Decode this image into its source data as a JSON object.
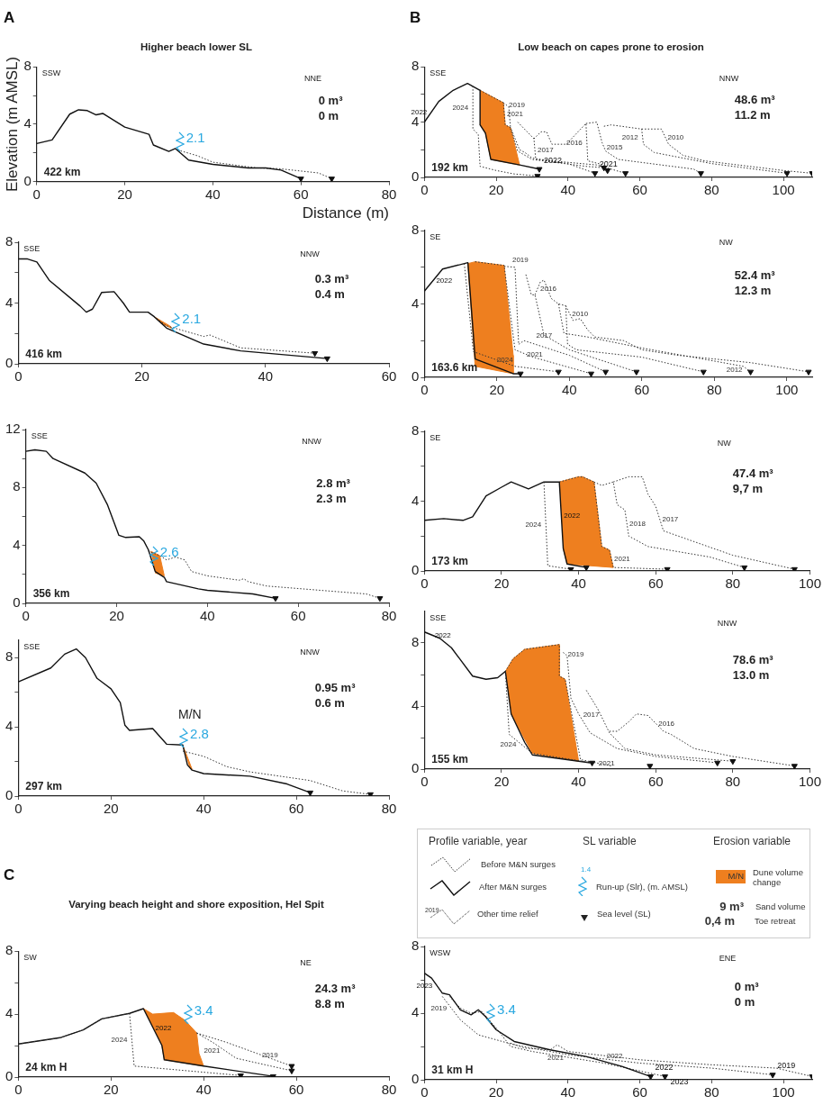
{
  "chart_data": [
    {
      "type": "line",
      "title": "A",
      "subtitle": "Higher beach lower SL",
      "xlabel": "Distance (m)",
      "ylabel": "Elevation (m AMSL)",
      "xlim": [
        0,
        80
      ],
      "ylim": [
        0,
        8
      ],
      "xticks": [
        0,
        20,
        40,
        60,
        80
      ],
      "yticks": [
        0,
        {
          "value": 2,
          "label": null
        },
        4,
        {
          "value": 6,
          "label": null
        },
        8
      ],
      "annotations": [
        "SSW",
        "NNE",
        "0 m³",
        "0 m",
        "422 km",
        {
          "text": "2.1",
          "x": 32.5,
          "y": 2.1
        }
      ],
      "series": [
        {
          "color": "#111111",
          "line_style": "solid",
          "x": [
            0,
            3.5,
            7.5,
            9.5,
            11.5,
            13.5,
            15,
            20,
            25.5,
            26.5,
            30,
            31.5,
            34.5,
            40,
            48,
            52,
            55.5,
            60
          ],
          "values": [
            2.65,
            2.9,
            4.7,
            5.0,
            4.95,
            4.65,
            4.75,
            3.8,
            3.3,
            2.55,
            2.1,
            2.3,
            1.5,
            1.2,
            0.95,
            0.95,
            0.8,
            0.2
          ]
        },
        {
          "color": "#333333",
          "line_style": "dotted",
          "x": [
            32,
            36.5,
            40,
            50,
            55,
            64,
            67
          ],
          "values": [
            2.2,
            1.8,
            1.35,
            0.95,
            0.9,
            0.6,
            0.2
          ]
        },
        {
          "type": "scatter",
          "color": "#111111",
          "marker": "triangle",
          "x": [
            60,
            67
          ],
          "values": [
            0.2,
            0.2
          ]
        }
      ]
    },
    {
      "type": "line",
      "xlim": [
        0,
        60
      ],
      "ylim": [
        0,
        8
      ],
      "xticks": [
        0,
        20,
        40,
        60
      ],
      "yticks": [
        0,
        {
          "value": 2,
          "label": null
        },
        4,
        {
          "value": 6,
          "label": null
        },
        8
      ],
      "annotations": [
        "SSE",
        "NNW",
        "0.3 m³",
        "0.4 m",
        "416 km",
        {
          "text": "2.1",
          "x": 25.5,
          "y": 2.1
        }
      ],
      "series": [
        {
          "color": "#111111",
          "line_style": "solid",
          "x": [
            0,
            1.5,
            3,
            5,
            10,
            11,
            12,
            13.5,
            15.5,
            17,
            18,
            21,
            22,
            24,
            30,
            36,
            50
          ],
          "values": [
            6.9,
            6.9,
            6.7,
            5.5,
            3.8,
            3.4,
            3.6,
            4.7,
            4.75,
            4.0,
            3.4,
            3.4,
            3.1,
            2.35,
            1.3,
            0.85,
            0.35
          ]
        },
        {
          "color": "#333333",
          "line_style": "dotted",
          "x": [
            22,
            24,
            30,
            31,
            36,
            48
          ],
          "values": [
            3.1,
            2.5,
            1.8,
            1.9,
            1.05,
            0.7
          ]
        },
        {
          "type": "area",
          "color": "#ee7f1f",
          "x": [
            22,
            24.5,
            25,
            23
          ],
          "values": [
            3.1,
            2.5,
            2.3,
            2.7
          ]
        },
        {
          "type": "scatter",
          "color": "#111111",
          "marker": "triangle",
          "x": [
            48,
            50
          ],
          "values": [
            0.7,
            0.35
          ]
        }
      ]
    },
    {
      "type": "line",
      "xlim": [
        0,
        80
      ],
      "ylim": [
        0,
        12
      ],
      "xticks": [
        0,
        20,
        40,
        60,
        80
      ],
      "yticks": [
        0,
        {
          "value": 2,
          "label": null
        },
        4,
        {
          "value": 6,
          "label": null
        },
        8,
        {
          "value": 10,
          "label": null
        },
        12
      ],
      "annotations": [
        "SSE",
        "NNW",
        "2.8 m³",
        "2.3 m",
        "356 km",
        {
          "text": "2.6",
          "x": 28.2,
          "y": 2.6
        }
      ],
      "series": [
        {
          "color": "#111111",
          "line_style": "solid",
          "x": [
            0,
            2,
            4.5,
            6,
            13,
            15.5,
            18,
            20.5,
            22,
            25,
            26,
            27,
            28.5,
            30.5,
            31,
            38,
            40,
            50,
            55
          ],
          "values": [
            10.5,
            10.6,
            10.5,
            10.0,
            9.0,
            8.3,
            6.8,
            4.7,
            4.55,
            4.6,
            4.3,
            3.7,
            2.2,
            1.8,
            1.5,
            1.0,
            0.9,
            0.65,
            0.35
          ]
        },
        {
          "color": "#333333",
          "line_style": "dotted",
          "x": [
            27,
            29.5,
            31,
            33,
            35,
            36.5,
            40,
            47,
            48,
            49,
            53,
            75,
            78
          ],
          "values": [
            3.6,
            3.3,
            3.0,
            3.2,
            3.0,
            2.2,
            1.9,
            1.6,
            1.7,
            1.5,
            1.2,
            0.65,
            0.35
          ]
        },
        {
          "type": "area",
          "color": "#ee7f1f",
          "x": [
            27.5,
            29.5,
            30.5,
            28.5
          ],
          "values": [
            3.6,
            3.3,
            1.9,
            2.1
          ]
        },
        {
          "type": "scatter",
          "color": "#111111",
          "marker": "triangle",
          "x": [
            55,
            78
          ],
          "values": [
            0.35,
            0.35
          ]
        }
      ]
    },
    {
      "type": "line",
      "xlim": [
        0,
        80
      ],
      "ylim": [
        0,
        9
      ],
      "xticks": [
        0,
        20,
        40,
        60,
        80
      ],
      "yticks": [
        0,
        {
          "value": 2,
          "label": null
        },
        4,
        {
          "value": 6,
          "label": null
        },
        8
      ],
      "annotations": [
        "SSE",
        "NNW",
        "0.95 m³",
        "0.6 m",
        "297 km",
        "M/N",
        {
          "text": "2.8",
          "x": 35.7,
          "y": 2.8
        }
      ],
      "series": [
        {
          "color": "#111111",
          "line_style": "solid",
          "x": [
            0,
            7,
            10,
            12.5,
            14.5,
            17,
            20,
            22,
            23,
            24,
            29,
            32,
            35.5,
            36.5,
            37.5,
            40,
            50,
            58,
            63
          ],
          "values": [
            6.6,
            7.4,
            8.2,
            8.5,
            8.0,
            6.8,
            6.2,
            5.4,
            4.1,
            3.8,
            3.9,
            3.0,
            2.95,
            1.8,
            1.5,
            1.3,
            1.15,
            0.7,
            0.2
          ]
        },
        {
          "color": "#333333",
          "line_style": "dotted",
          "x": [
            35.5,
            40,
            45,
            50,
            63,
            70,
            76
          ],
          "values": [
            2.6,
            2.3,
            1.7,
            1.4,
            0.9,
            0.3,
            0.1
          ]
        },
        {
          "type": "area",
          "color": "#ee7f1f",
          "x": [
            35.5,
            36,
            37.5,
            36.8
          ],
          "values": [
            2.9,
            2.6,
            1.55,
            1.75
          ]
        },
        {
          "type": "scatter",
          "color": "#111111",
          "marker": "triangle",
          "x": [
            63,
            76
          ],
          "values": [
            0.2,
            0.1
          ]
        }
      ]
    },
    {
      "type": "line",
      "title": "B",
      "subtitle": "Low beach on capes prone to erosion",
      "xlim": [
        0,
        108
      ],
      "ylim": [
        0,
        8
      ],
      "xticks": [
        0,
        20,
        40,
        60,
        80,
        100
      ],
      "yticks": [
        0,
        {
          "value": 2,
          "label": null
        },
        4,
        {
          "value": 6,
          "label": null
        },
        8
      ],
      "annotations": [
        "SSE",
        "NNW",
        "48.6 m³",
        "11.2 m",
        "192 km",
        "2022",
        "2021"
      ],
      "series": [
        {
          "name": "2024",
          "color": "#333333",
          "line_style": "dotted",
          "x": [
            13.5,
            13.5,
            15,
            15.5,
            20,
            25,
            31.5
          ],
          "values": [
            6.6,
            3.5,
            3.1,
            0.8,
            0.5,
            0.25,
            0.1
          ]
        },
        {
          "name": "2022",
          "color": "#111111",
          "line_style": "solid",
          "x": [
            0,
            4,
            8,
            12,
            15.5,
            15.5,
            17,
            18.5,
            26.5,
            32
          ],
          "values": [
            4.0,
            5.5,
            6.3,
            6.8,
            6.3,
            3.8,
            3.2,
            1.3,
            0.9,
            0.6
          ]
        },
        {
          "name": "2021",
          "color": "#333333",
          "line_style": "dotted",
          "x": [
            15.5,
            22,
            22.5,
            24,
            26.5,
            28,
            30,
            40,
            47.5
          ],
          "values": [
            6.3,
            5.4,
            3.8,
            3.6,
            2.0,
            1.8,
            1.4,
            1.0,
            0.3
          ]
        },
        {
          "name": "2019",
          "color": "#333333",
          "line_style": "dotted",
          "x": [
            22,
            23.5,
            24,
            26,
            30,
            45,
            50
          ],
          "values": [
            5.4,
            5.1,
            3.5,
            1.9,
            1.3,
            0.8,
            0.7
          ]
        },
        {
          "name": "2017",
          "color": "#333333",
          "line_style": "dotted",
          "x": [
            26,
            30.5,
            31,
            48,
            56
          ],
          "values": [
            4.0,
            2.8,
            1.3,
            0.9,
            0.3
          ]
        },
        {
          "name": "2016",
          "color": "#333333",
          "line_style": "dotted",
          "x": [
            30.5,
            32.5,
            34,
            35.5,
            39.5,
            45,
            45.5,
            50,
            51
          ],
          "values": [
            2.8,
            3.3,
            3.3,
            2.4,
            2.4,
            3.9,
            1.2,
            0.9,
            0.5
          ]
        },
        {
          "name": "2015",
          "color": "#333333",
          "line_style": "dotted",
          "x": [
            45,
            48,
            49.5,
            50.5,
            54,
            75,
            77
          ],
          "values": [
            3.9,
            4.0,
            2.5,
            1.9,
            1.3,
            0.6,
            0.3
          ]
        },
        {
          "name": "2012",
          "color": "#333333",
          "line_style": "dotted",
          "x": [
            50,
            52,
            60.5,
            61,
            64,
            80,
            101
          ],
          "values": [
            3.7,
            3.8,
            3.5,
            2.4,
            1.8,
            1.0,
            0.3
          ]
        },
        {
          "name": "2010",
          "color": "#333333",
          "line_style": "dotted",
          "x": [
            60.5,
            66,
            68,
            72,
            78,
            100,
            108
          ],
          "values": [
            3.5,
            3.5,
            2.4,
            1.6,
            1.2,
            0.5,
            0.3
          ]
        },
        {
          "type": "area",
          "color": "#ee7f1f",
          "x": [
            15.5,
            22,
            22.5,
            24,
            26.5,
            18.5,
            17,
            15.5
          ],
          "values": [
            6.3,
            5.4,
            3.8,
            3.6,
            0.9,
            1.3,
            3.2,
            3.8
          ]
        },
        {
          "type": "scatter",
          "color": "#111111",
          "marker": "triangle",
          "x": [
            32,
            47.5,
            31.5,
            50,
            51,
            56,
            77,
            101,
            108
          ],
          "values": [
            0.6,
            0.3,
            0.1,
            0.7,
            0.5,
            0.3,
            0.3,
            0.3,
            0.3
          ]
        }
      ]
    },
    {
      "type": "line",
      "xlim": [
        0,
        107
      ],
      "ylim": [
        0,
        8
      ],
      "xticks": [
        0,
        20,
        40,
        60,
        80,
        100
      ],
      "yticks": [
        0,
        {
          "value": 2,
          "label": null
        },
        4,
        {
          "value": 6,
          "label": null
        },
        8
      ],
      "annotations": [
        "SE",
        "NW",
        "52.4 m³",
        "12.3 m",
        "163.6 km"
      ],
      "series": [
        {
          "name": "2024",
          "color": "#333333",
          "line_style": "dotted",
          "x": [
            11,
            13.5,
            25,
            37
          ],
          "values": [
            6.2,
            1.4,
            0.6,
            0.3
          ]
        },
        {
          "name": "2022",
          "color": "#111111",
          "line_style": "solid",
          "x": [
            0,
            5,
            12,
            14,
            24.5,
            26.5
          ],
          "values": [
            4.7,
            5.9,
            6.25,
            1.0,
            0.2,
            0.2
          ]
        },
        {
          "name": "2021",
          "color": "#333333",
          "line_style": "dotted",
          "x": [
            14,
            22,
            25,
            30,
            46
          ],
          "values": [
            6.3,
            6.1,
            1.5,
            1.1,
            0.2
          ]
        },
        {
          "name": "2019",
          "color": "#333333",
          "line_style": "dotted",
          "x": [
            22,
            25,
            26,
            27.5,
            40,
            50
          ],
          "values": [
            6.05,
            6.0,
            1.8,
            2.0,
            1.2,
            0.3
          ]
        },
        {
          "name": "2017",
          "color": "#333333",
          "line_style": "dotted",
          "x": [
            28,
            29.5,
            30.5,
            33,
            40,
            58.5
          ],
          "values": [
            5.6,
            4.5,
            4.5,
            2.3,
            1.5,
            0.3
          ]
        },
        {
          "name": "2016",
          "color": "#333333",
          "line_style": "dotted",
          "x": [
            30.5,
            32,
            33,
            35,
            37,
            39,
            39.5,
            42,
            60,
            77
          ],
          "values": [
            4.5,
            5.2,
            5.3,
            4.3,
            4.0,
            3.9,
            1.8,
            1.5,
            1.1,
            0.3
          ]
        },
        {
          "name": "2012",
          "color": "#333333",
          "line_style": "dotted",
          "x": [
            37,
            38.5,
            45,
            60,
            88,
            90
          ],
          "values": [
            4.0,
            2.4,
            2.2,
            1.6,
            0.6,
            0.3
          ]
        },
        {
          "name": "2010",
          "color": "#333333",
          "line_style": "dotted",
          "x": [
            39,
            41,
            43,
            45,
            47,
            55,
            60,
            70,
            90,
            106
          ],
          "values": [
            3.9,
            3.1,
            3.2,
            2.6,
            2.2,
            2.0,
            1.5,
            1.2,
            0.8,
            0.3
          ]
        },
        {
          "type": "area",
          "color": "#ee7f1f",
          "x": [
            12,
            14,
            22,
            24.5,
            24.5,
            14,
            12
          ],
          "values": [
            6.2,
            6.3,
            6.1,
            1.2,
            0.2,
            0.6,
            6.2
          ]
        },
        {
          "type": "scatter",
          "color": "#111111",
          "marker": "triangle",
          "x": [
            26.5,
            37,
            46,
            50,
            58.5,
            77,
            90,
            106
          ],
          "values": [
            0.2,
            0.3,
            0.2,
            0.3,
            0.3,
            0.3,
            0.3,
            0.3
          ]
        }
      ]
    },
    {
      "type": "line",
      "xlim": [
        0,
        100
      ],
      "ylim": [
        0,
        8
      ],
      "xticks": [
        0,
        20,
        40,
        60,
        80,
        100
      ],
      "yticks": [
        0,
        {
          "value": 2,
          "label": null
        },
        4,
        {
          "value": 6,
          "label": null
        },
        8
      ],
      "annotations": [
        "SE",
        "NW",
        "47.4 m³",
        "9,7 m",
        "173 km"
      ],
      "series": [
        {
          "name": "2024",
          "color": "#333333",
          "line_style": "dotted",
          "x": [
            31,
            32,
            38
          ],
          "values": [
            5.1,
            0.3,
            0.1
          ]
        },
        {
          "name": "2022",
          "color": "#111111",
          "line_style": "solid",
          "x": [
            0,
            5,
            10,
            12.5,
            16,
            20,
            22.5,
            27,
            31,
            35,
            36,
            37,
            42
          ],
          "values": [
            2.9,
            3.0,
            2.9,
            3.1,
            4.3,
            4.8,
            5.1,
            4.7,
            5.1,
            5.1,
            1.3,
            0.4,
            0.2
          ]
        },
        {
          "name": "2021",
          "color": "#333333",
          "line_style": "dotted",
          "x": [
            35,
            40,
            41,
            44,
            46,
            48,
            49,
            63
          ],
          "values": [
            5.1,
            5.4,
            5.4,
            5.1,
            1.4,
            1.2,
            0.2,
            0.1
          ]
        },
        {
          "name": "2018",
          "color": "#333333",
          "line_style": "dotted",
          "x": [
            44,
            46,
            49,
            50,
            52,
            53,
            58,
            74,
            83
          ],
          "values": [
            5.1,
            4.9,
            5.1,
            3.8,
            3.5,
            2.0,
            1.4,
            0.8,
            0.2
          ]
        },
        {
          "name": "2017",
          "color": "#333333",
          "line_style": "dotted",
          "x": [
            49,
            53,
            56.5,
            58,
            60,
            62,
            80,
            96
          ],
          "values": [
            5.1,
            5.4,
            5.4,
            4.4,
            3.7,
            2.3,
            0.9,
            0.1
          ]
        },
        {
          "type": "area",
          "color": "#ee7f1f",
          "x": [
            35,
            40,
            41,
            44,
            46,
            48,
            49,
            37,
            36
          ],
          "values": [
            5.1,
            5.4,
            5.4,
            5.1,
            1.4,
            1.2,
            0.2,
            0.4,
            1.3
          ]
        },
        {
          "type": "scatter",
          "color": "#111111",
          "marker": "triangle",
          "x": [
            38,
            42,
            63,
            83,
            96
          ],
          "values": [
            0.1,
            0.2,
            0.1,
            0.2,
            0.1
          ]
        }
      ]
    },
    {
      "type": "line",
      "xlim": [
        0,
        100
      ],
      "ylim": [
        0,
        10
      ],
      "xticks": [
        0,
        20,
        40,
        60,
        80,
        100
      ],
      "yticks": [
        0,
        {
          "value": 2,
          "label": null
        },
        4,
        {
          "value": 6,
          "label": null
        },
        8
      ],
      "annotations": [
        "SSE",
        "NNW",
        "78.6 m³",
        "13.0 m",
        "155 km"
      ],
      "series": [
        {
          "name": "2024",
          "color": "#333333",
          "line_style": "dotted",
          "x": [
            21,
            22,
            28,
            43.5
          ],
          "values": [
            6.2,
            2.2,
            1.0,
            0.4
          ]
        },
        {
          "name": "2022",
          "color": "#111111",
          "line_style": "solid",
          "x": [
            0,
            4,
            7,
            12.5,
            16,
            19,
            21,
            22.5,
            26,
            28,
            40,
            43
          ],
          "values": [
            8.7,
            8.3,
            7.7,
            5.9,
            5.7,
            5.8,
            6.2,
            3.5,
            1.7,
            0.9,
            0.5,
            0.4
          ]
        },
        {
          "name": "2021",
          "color": "#333333",
          "line_style": "dotted",
          "x": [
            21,
            23,
            26,
            35,
            35,
            36.5,
            40.5,
            48.5
          ],
          "values": [
            6.2,
            7.0,
            7.6,
            7.9,
            5.9,
            5.7,
            0.6,
            0.2
          ]
        },
        {
          "name": "2019",
          "color": "#333333",
          "line_style": "dotted",
          "x": [
            36,
            37,
            38,
            40,
            43,
            50,
            60,
            76
          ],
          "values": [
            7.4,
            7.2,
            4.5,
            3.5,
            2.3,
            1.3,
            0.8,
            0.4
          ]
        },
        {
          "name": "2017",
          "color": "#333333",
          "line_style": "dotted",
          "x": [
            42,
            45,
            48,
            52,
            60,
            80
          ],
          "values": [
            5.0,
            3.8,
            2.3,
            1.3,
            0.9,
            0.5
          ]
        },
        {
          "name": "2016",
          "color": "#333333",
          "line_style": "dotted",
          "x": [
            48,
            50,
            53,
            55,
            58,
            62,
            64,
            70,
            80,
            96
          ],
          "values": [
            2.4,
            2.4,
            3.0,
            3.5,
            3.4,
            2.4,
            2.2,
            1.3,
            0.8,
            0.2
          ]
        },
        {
          "type": "area",
          "color": "#ee7f1f",
          "x": [
            21,
            23,
            26,
            35,
            35,
            36.5,
            40,
            28,
            22.5
          ],
          "values": [
            6.2,
            7.0,
            7.6,
            7.9,
            5.9,
            5.7,
            0.5,
            1.0,
            3.5
          ]
        },
        {
          "type": "scatter",
          "color": "#111111",
          "marker": "triangle",
          "x": [
            43.5,
            58.5,
            76,
            80,
            96
          ],
          "values": [
            0.4,
            0.2,
            0.4,
            0.5,
            0.2
          ]
        }
      ]
    },
    {
      "type": "other",
      "annotations": [
        "Profile variable, year",
        "Before M&N surges",
        "After M&N surges",
        "2019",
        "Other time relief",
        "SL variable",
        "1.4",
        "Run-up (Slr), (m. AMSL)",
        "Sea level (SL)",
        "Erosion variable",
        "M/N",
        "Dune volume change",
        "9 m³",
        "Sand volume",
        "0,4 m",
        "Toe retreat"
      ]
    },
    {
      "type": "line",
      "title": "C",
      "subtitle": "Varying beach height and shore exposition, Hel Spit",
      "xlim": [
        0,
        80
      ],
      "ylim": [
        0,
        8
      ],
      "xticks": [
        0,
        20,
        40,
        60,
        80
      ],
      "yticks": [
        0,
        {
          "value": 2,
          "label": null
        },
        4,
        {
          "value": 6,
          "label": null
        },
        8
      ],
      "annotations": [
        "SW",
        "NE",
        "24.3 m³",
        "8.8 m",
        "24 km H",
        {
          "text": "3.4",
          "x": 36.6,
          "y": 3.4
        }
      ],
      "series": [
        {
          "name": "2024",
          "color": "#333333",
          "line_style": "dotted",
          "x": [
            0,
            9,
            14,
            18,
            24,
            25,
            48
          ],
          "values": [
            2.1,
            2.5,
            3.0,
            3.7,
            4.05,
            0.7,
            0.1
          ]
        },
        {
          "name": "2022",
          "color": "#111111",
          "line_style": "solid",
          "x": [
            0,
            9,
            14,
            18,
            24,
            27,
            31,
            31.5,
            40,
            55
          ],
          "values": [
            2.1,
            2.5,
            3.0,
            3.7,
            4.05,
            4.35,
            2.0,
            1.1,
            0.7,
            0.05
          ]
        },
        {
          "name": "2021",
          "color": "#333333",
          "line_style": "dotted",
          "x": [
            38.5,
            42,
            47,
            59
          ],
          "values": [
            2.8,
            2.2,
            1.2,
            0.4
          ]
        },
        {
          "name": "2019",
          "color": "#333333",
          "line_style": "dotted",
          "x": [
            38.5,
            45,
            59
          ],
          "values": [
            2.8,
            2.2,
            0.7
          ]
        },
        {
          "type": "area",
          "color": "#ee7f1f",
          "x": [
            27,
            29,
            33.5,
            36,
            38.5,
            39,
            40,
            31.5,
            31
          ],
          "values": [
            4.35,
            4.0,
            4.1,
            3.6,
            2.8,
            1.5,
            0.7,
            1.1,
            2.0
          ]
        },
        {
          "type": "scatter",
          "color": "#111111",
          "marker": "triangle",
          "x": [
            48,
            55,
            59,
            59
          ],
          "values": [
            0.1,
            0.05,
            0.4,
            0.7
          ]
        }
      ]
    },
    {
      "type": "line",
      "xlim": [
        0,
        108
      ],
      "ylim": [
        0,
        8
      ],
      "xticks": [
        0,
        20,
        40,
        60,
        80,
        100
      ],
      "yticks": [
        0,
        {
          "value": 2,
          "label": null
        },
        4,
        {
          "value": 6,
          "label": null
        },
        8
      ],
      "annotations": [
        "WSW",
        "ENE",
        "0 m³",
        "0 m",
        "31 km H",
        {
          "text": "3.4",
          "x": 18.5,
          "y": 3.4
        },
        "2022",
        "2023",
        "2019"
      ],
      "series": [
        {
          "name": "2023",
          "color": "#111111",
          "line_style": "solid",
          "x": [
            0,
            2,
            5,
            7,
            10,
            13,
            15,
            17,
            20,
            25,
            35,
            45,
            55,
            63
          ],
          "values": [
            6.4,
            6.1,
            5.2,
            5.1,
            4.2,
            3.9,
            4.2,
            3.8,
            3.0,
            2.3,
            1.8,
            1.4,
            0.8,
            0.2
          ]
        },
        {
          "name": "2021",
          "color": "#333333",
          "line_style": "dotted",
          "x": [
            7,
            10,
            13,
            16,
            20,
            24,
            30,
            50,
            67
          ],
          "values": [
            5.0,
            4.3,
            4.0,
            4.1,
            3.1,
            2.0,
            1.7,
            1.0,
            0.2
          ]
        },
        {
          "name": "2019",
          "color": "#333333",
          "line_style": "dotted",
          "x": [
            5,
            10,
            15,
            25,
            40,
            60,
            80,
            97
          ],
          "values": [
            5.0,
            3.6,
            2.7,
            2.1,
            1.5,
            1.0,
            0.7,
            0.3
          ]
        },
        {
          "name": "2022",
          "color": "#333333",
          "line_style": "dotted",
          "x": [
            24,
            28,
            35,
            37,
            40,
            60,
            80,
            98,
            100,
            108
          ],
          "values": [
            2.2,
            1.9,
            1.8,
            2.1,
            1.7,
            1.2,
            0.9,
            0.7,
            0.6,
            0.2
          ]
        },
        {
          "type": "scatter",
          "color": "#111111",
          "marker": "triangle",
          "x": [
            63,
            67,
            97,
            108
          ],
          "values": [
            0.2,
            0.2,
            0.3,
            0.2
          ]
        }
      ]
    }
  ]
}
